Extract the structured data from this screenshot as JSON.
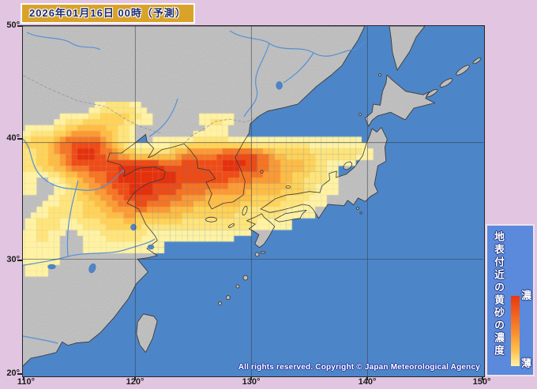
{
  "header": {
    "title": "2026年01月16日 00時（予測）"
  },
  "axes": {
    "lat": [
      "50°",
      "40°",
      "30°",
      "20°"
    ],
    "lon": [
      "110°",
      "120°",
      "130°",
      "140°",
      "150°"
    ]
  },
  "legend": {
    "title": "地表付近の黄砂の濃度",
    "high": "濃",
    "low": "薄"
  },
  "map_meta": {
    "copyright": "All rights reserved. Copyright © Japan Meteorological Agency"
  },
  "colors": {
    "background": "#E2C5E1",
    "ocean": "#4D86C8",
    "land": "#C9C9C9",
    "title_box": "#D9A32A",
    "title_text": "#1B2B6F",
    "legend_bg": "#5B89DC",
    "river": "#5590D5",
    "grid_line": "#30353A"
  },
  "chart_data": {
    "type": "heatmap",
    "valid_time": "2026年01月16日 00時（予測）",
    "lon_range": [
      110,
      150
    ],
    "lat_range": [
      20,
      50
    ],
    "lon_ticks": [
      "110°",
      "120°",
      "130°",
      "140°",
      "150°"
    ],
    "lat_ticks": [
      "50°",
      "40°",
      "30°",
      "20°"
    ],
    "legend_title": "地表付近の黄砂の濃度",
    "scale_labels": {
      "max": "濃",
      "min": "薄"
    },
    "grid_lon_start": 110,
    "grid_lon_step": 1,
    "grid_lat_start": 43,
    "grid_lat_step": -1,
    "levels": [
      "#FFF2A2",
      "#FFE47A",
      "#FFD258",
      "#FFBC44",
      "#FB9A34",
      "#F57524",
      "#EE4B15",
      "#E5300C"
    ],
    "grid": [
      [
        0,
        0,
        0,
        0,
        0,
        0,
        0,
        1,
        2,
        2,
        1,
        0,
        0,
        0,
        0,
        0,
        0,
        0,
        0,
        0,
        0,
        0,
        0,
        0,
        0,
        0,
        0,
        0,
        0,
        0,
        0,
        0,
        0,
        0
      ],
      [
        0,
        0,
        0,
        0,
        1,
        1,
        2,
        3,
        3,
        3,
        2,
        1,
        0,
        0,
        0,
        0,
        1,
        2,
        1,
        0,
        0,
        0,
        0,
        0,
        0,
        0,
        0,
        0,
        0,
        0,
        0,
        0,
        0,
        0
      ],
      [
        0,
        1,
        1,
        2,
        3,
        4,
        5,
        4,
        3,
        2,
        0,
        0,
        0,
        0,
        0,
        0,
        0,
        1,
        0,
        0,
        0,
        0,
        0,
        0,
        0,
        0,
        0,
        0,
        0,
        0,
        0,
        0,
        0,
        0
      ],
      [
        2,
        3,
        3,
        4,
        6,
        7,
        7,
        6,
        4,
        2,
        0,
        0,
        1,
        1,
        1,
        2,
        2,
        2,
        2,
        1,
        1,
        1,
        1,
        1,
        1,
        1,
        1,
        1,
        1,
        1,
        0,
        0,
        0,
        0
      ],
      [
        2,
        2,
        3,
        4,
        6,
        8,
        8,
        7,
        6,
        4,
        3,
        2,
        2,
        3,
        5,
        6,
        6,
        6,
        7,
        7,
        7,
        6,
        4,
        3,
        3,
        3,
        2,
        2,
        2,
        2,
        1,
        0,
        0,
        0
      ],
      [
        2,
        2,
        3,
        4,
        5,
        7,
        7,
        7,
        7,
        8,
        8,
        8,
        8,
        7,
        7,
        7,
        7,
        7,
        8,
        8,
        7,
        6,
        5,
        4,
        4,
        3,
        2,
        1,
        0,
        0,
        0,
        0,
        0,
        0
      ],
      [
        1,
        1,
        0,
        1,
        3,
        4,
        5,
        6,
        7,
        8,
        8,
        8,
        8,
        8,
        7,
        7,
        7,
        7,
        7,
        6,
        6,
        5,
        5,
        4,
        3,
        2,
        2,
        1,
        0,
        0,
        0,
        0,
        0,
        0
      ],
      [
        1,
        1,
        0,
        0,
        1,
        3,
        4,
        5,
        6,
        7,
        8,
        8,
        7,
        7,
        6,
        6,
        6,
        5,
        5,
        5,
        4,
        4,
        4,
        3,
        3,
        2,
        1,
        1,
        0,
        0,
        0,
        0,
        0,
        0
      ],
      [
        0,
        0,
        0,
        1,
        2,
        2,
        3,
        4,
        5,
        6,
        7,
        7,
        6,
        6,
        5,
        5,
        4,
        4,
        4,
        4,
        3,
        3,
        3,
        2,
        2,
        1,
        1,
        0,
        0,
        0,
        0,
        0,
        0,
        0
      ],
      [
        0,
        0,
        1,
        2,
        2,
        2,
        3,
        3,
        4,
        5,
        5,
        5,
        5,
        4,
        4,
        3,
        3,
        3,
        3,
        2,
        2,
        2,
        2,
        1,
        1,
        1,
        0,
        0,
        0,
        0,
        0,
        0,
        0,
        0
      ],
      [
        0,
        1,
        2,
        2,
        1,
        1,
        2,
        2,
        3,
        3,
        3,
        2,
        2,
        2,
        2,
        2,
        2,
        2,
        2,
        2,
        2,
        1,
        1,
        1,
        0,
        0,
        0,
        0,
        0,
        0,
        0,
        0,
        0,
        0
      ],
      [
        1,
        1,
        2,
        1,
        0,
        0,
        1,
        1,
        2,
        2,
        2,
        1,
        1,
        1,
        1,
        1,
        1,
        1,
        1,
        0,
        0,
        0,
        0,
        0,
        0,
        0,
        0,
        0,
        0,
        0,
        0,
        0,
        0,
        0
      ],
      [
        1,
        1,
        1,
        1,
        0,
        0,
        1,
        1,
        1,
        1,
        1,
        1,
        1,
        0,
        0,
        0,
        0,
        0,
        0,
        0,
        0,
        0,
        0,
        0,
        0,
        0,
        0,
        0,
        0,
        0,
        0,
        0,
        0,
        0
      ],
      [
        1,
        1,
        1,
        1,
        0,
        0,
        0,
        0,
        0,
        0,
        0,
        0,
        0,
        0,
        0,
        0,
        0,
        0,
        0,
        0,
        0,
        0,
        0,
        0,
        0,
        0,
        0,
        0,
        0,
        0,
        0,
        0,
        0,
        0
      ],
      [
        0,
        1,
        1,
        0,
        0,
        0,
        0,
        0,
        0,
        0,
        0,
        0,
        0,
        0,
        0,
        0,
        0,
        0,
        0,
        0,
        0,
        0,
        0,
        0,
        0,
        0,
        0,
        0,
        0,
        0,
        0,
        0,
        0,
        0
      ],
      [
        0,
        0,
        0,
        0,
        0,
        0,
        0,
        0,
        0,
        0,
        0,
        0,
        0,
        0,
        0,
        0,
        0,
        0,
        0,
        0,
        0,
        0,
        0,
        0,
        0,
        0,
        0,
        0,
        0,
        0,
        0,
        0,
        0,
        0
      ],
      [
        0,
        0,
        0,
        0,
        0,
        0,
        0,
        0,
        0,
        0,
        0,
        0,
        0,
        0,
        0,
        0,
        0,
        0,
        0,
        0,
        0,
        0,
        0,
        0,
        0,
        0,
        0,
        0,
        0,
        0,
        0,
        0,
        0,
        0
      ],
      [
        0,
        0,
        0,
        0,
        0,
        0,
        0,
        0,
        0,
        0,
        0,
        0,
        0,
        0,
        0,
        0,
        0,
        0,
        0,
        0,
        0,
        0,
        0,
        0,
        0,
        0,
        0,
        0,
        0,
        0,
        0,
        0,
        0,
        0
      ]
    ]
  }
}
